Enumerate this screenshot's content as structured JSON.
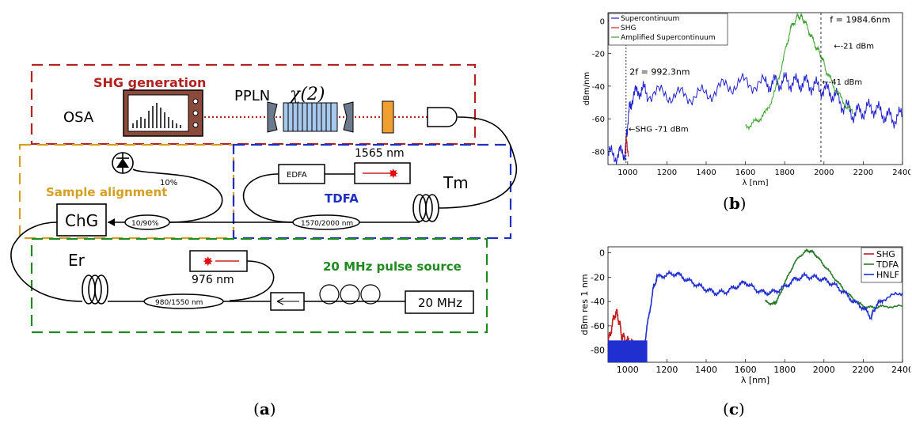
{
  "captions": {
    "a": "a",
    "b": "b",
    "c": "c"
  },
  "diagram": {
    "shg_title": "SHG generation",
    "osa": "OSA",
    "pplln": "PPLN",
    "chi2": "χ(2)",
    "sample_alignment": "Sample alignment",
    "detector_pct": "10%",
    "chg": "ChG",
    "coupler_10_90": "10/90%",
    "edfa": "EDFA",
    "laser_1565": "1565 nm",
    "tdfa": "TDFA",
    "tm": "Tm",
    "wdm_1570_2000": "1570/2000 nm",
    "er": "Er",
    "laser_976": "976 nm",
    "pulse_source": "20 MHz pulse source",
    "wdm_980_1550": "980/1550 nm",
    "clock_20mhz": "20 MHz",
    "colors": {
      "shg": "#b22222",
      "sample": "#d4a024",
      "tdfa": "#1f2fbf",
      "pulse": "#1f8a1f"
    }
  },
  "chart_b": {
    "ylabel": "dBm/nm",
    "xlabel": "λ [nm]",
    "legend": [
      "Supercontinuum",
      "SHG",
      "Amplified Supercontinuum"
    ],
    "ann_2f": "2f  = 992.3nm",
    "ann_f": "f = 1984.6nm",
    "ann_21": "-21 dBm",
    "ann_41": "-41 dBm",
    "ann_shg": "SHG -71 dBm"
  },
  "chart_c": {
    "ylabel": "dBm res 1 nm",
    "xlabel": "λ [nm]",
    "legend": [
      "SHG",
      "TDFA",
      "HNLF"
    ]
  },
  "chart_data": [
    {
      "type": "line",
      "xlabel": "λ [nm]",
      "ylabel": "dBm/nm",
      "xlim": [
        900,
        2400
      ],
      "ylim": [
        -88,
        5
      ],
      "xticks": [
        1000,
        1200,
        1400,
        1600,
        1800,
        2000,
        2200,
        2400
      ],
      "yticks": [
        0,
        -20,
        -40,
        -60,
        -80
      ],
      "legend_position": "top-left",
      "series": [
        {
          "name": "Supercontinuum",
          "color": "#2020d0",
          "x": [
            900,
            950,
            990,
            1000,
            1020,
            1060,
            1100,
            1200,
            1300,
            1400,
            1500,
            1600,
            1700,
            1750,
            1800,
            1850,
            1900,
            1950,
            2000,
            2050,
            2100,
            2150,
            2200,
            2250,
            2300,
            2350,
            2400
          ],
          "y": [
            -82,
            -82,
            -80,
            -62,
            -48,
            -42,
            -44,
            -45,
            -46,
            -45,
            -40,
            -38,
            -39,
            -38,
            -37,
            -38,
            -38,
            -40,
            -42,
            -45,
            -52,
            -57,
            -55,
            -53,
            -57,
            -60,
            -58
          ]
        },
        {
          "name": "SHG",
          "color": "#d02020",
          "x": [
            985,
            988,
            992,
            996,
            1000,
            1004
          ],
          "y": [
            -82,
            -78,
            -71,
            -74,
            -80,
            -82
          ]
        },
        {
          "name": "Amplified Supercontinuum",
          "color": "#3aa02a",
          "x": [
            1600,
            1650,
            1700,
            1750,
            1800,
            1830,
            1860,
            1880,
            1900,
            1930,
            1960,
            1985,
            2010,
            2050,
            2100,
            2150
          ],
          "y": [
            -65,
            -62,
            -57,
            -44,
            -20,
            -5,
            2,
            3,
            0,
            -8,
            -16,
            -21,
            -30,
            -40,
            -50,
            -57
          ]
        }
      ]
    },
    {
      "type": "line",
      "xlabel": "λ [nm]",
      "ylabel": "dBm res 1 nm",
      "xlim": [
        900,
        2400
      ],
      "ylim": [
        -90,
        5
      ],
      "xticks": [
        1000,
        1200,
        1400,
        1600,
        1800,
        2000,
        2200,
        2400
      ],
      "yticks": [
        0,
        -20,
        -40,
        -60,
        -80
      ],
      "legend_position": "top-right",
      "series": [
        {
          "name": "SHG",
          "color": "#c02020",
          "x": [
            900,
            920,
            940,
            955,
            970,
            990,
            1010,
            1030
          ],
          "y": [
            -75,
            -60,
            -48,
            -55,
            -68,
            -72,
            -74,
            -76
          ]
        },
        {
          "name": "TDFA",
          "color": "#2a7a2a",
          "x": [
            1700,
            1740,
            1760,
            1800,
            1850,
            1900,
            1930,
            1960,
            2000,
            2050,
            2100,
            2150,
            2200,
            2250,
            2300,
            2400
          ],
          "y": [
            -40,
            -42,
            -40,
            -25,
            -8,
            1,
            2,
            -2,
            -10,
            -20,
            -30,
            -38,
            -44,
            -45,
            -44,
            -44
          ]
        },
        {
          "name": "HNLF",
          "color": "#1f2fd0",
          "x": [
            900,
            1000,
            1080,
            1100,
            1130,
            1150,
            1200,
            1250,
            1300,
            1350,
            1400,
            1450,
            1500,
            1550,
            1600,
            1650,
            1700,
            1750,
            1800,
            1850,
            1900,
            1950,
            2000,
            2050,
            2100,
            2150,
            2200,
            2240,
            2260,
            2300,
            2400
          ],
          "y": [
            -82,
            -82,
            -82,
            -60,
            -30,
            -20,
            -18,
            -17,
            -22,
            -26,
            -30,
            -33,
            -32,
            -28,
            -24,
            -30,
            -33,
            -32,
            -28,
            -22,
            -19,
            -20,
            -22,
            -26,
            -32,
            -40,
            -45,
            -53,
            -45,
            -38,
            -33
          ]
        }
      ]
    }
  ]
}
